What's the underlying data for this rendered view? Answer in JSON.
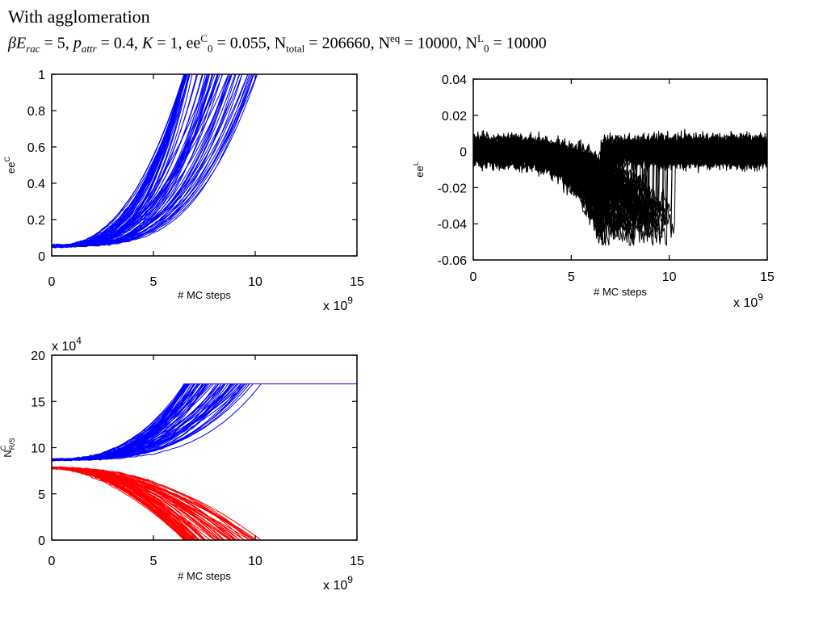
{
  "slide": {
    "title": "With agglomeration",
    "params": {
      "beta": "β",
      "E": "E",
      "E_sub": "rac",
      "E_val": " = 5,  ",
      "p": "p",
      "p_sub": "attr",
      "p_val": " = 0.4, ",
      "K": "K",
      "K_val": " = 1, ee",
      "ee_sup": "C",
      "ee_sub": "0",
      "ee_val": " = 0.055, N",
      "ntot_sub": "total",
      "ntot_val": " = 206660, N",
      "neq_sup": "eq",
      "neq_val": " = 10000, N",
      "nl_sup": "L",
      "nl_sub": "0",
      "nl_val": " = 10000"
    }
  },
  "chart_data": [
    {
      "id": "eeC",
      "type": "line",
      "ylabel": "ee",
      "ylabel_sup": "C",
      "xlabel": "# MC steps",
      "x_multiplier": "x 10",
      "x_multiplier_exp": "9",
      "y_multiplier": "",
      "y_multiplier_exp": "",
      "xlim": [
        0,
        15
      ],
      "ylim": [
        0,
        1
      ],
      "xticks": [
        "0",
        "5",
        "10",
        "15"
      ],
      "yticks": [
        "0",
        "0.2",
        "0.4",
        "0.6",
        "0.8",
        "1"
      ],
      "color": "#0000ff",
      "series_count": 80,
      "initial_value": 0.055,
      "final_value": 1.0,
      "completion_x_range": [
        6.5,
        10.3
      ],
      "sample_series": [
        {
          "x": [
            0,
            2,
            4,
            5,
            6,
            6.5
          ],
          "y": [
            0.055,
            0.12,
            0.33,
            0.5,
            0.78,
            1.0
          ]
        },
        {
          "x": [
            0,
            2,
            4,
            6,
            7,
            8
          ],
          "y": [
            0.055,
            0.08,
            0.2,
            0.45,
            0.68,
            1.0
          ]
        },
        {
          "x": [
            0,
            2,
            4,
            6,
            8,
            9.4
          ],
          "y": [
            0.055,
            0.06,
            0.13,
            0.32,
            0.65,
            1.0
          ]
        },
        {
          "x": [
            0,
            2,
            4,
            6,
            8,
            10.3
          ],
          "y": [
            0.055,
            0.05,
            0.1,
            0.22,
            0.45,
            1.0
          ]
        }
      ]
    },
    {
      "id": "eeL",
      "type": "line",
      "ylabel": "ee",
      "ylabel_sup": "L",
      "xlabel": "# MC steps",
      "x_multiplier": "x 10",
      "x_multiplier_exp": "9",
      "y_multiplier": "",
      "y_multiplier_exp": "",
      "xlim": [
        0,
        15
      ],
      "ylim": [
        -0.06,
        0.04
      ],
      "xticks": [
        "0",
        "5",
        "10",
        "15"
      ],
      "yticks": [
        "-0.06",
        "-0.04",
        "-0.02",
        "0",
        "0.02",
        "0.04"
      ],
      "color": "#000000",
      "series_count": 80,
      "noise_amplitude": 0.007,
      "minimum_range": [
        -0.05,
        -0.035
      ],
      "minimum_x": 7.3,
      "recovery_x_range": [
        6.5,
        10.3
      ]
    },
    {
      "id": "NRS",
      "type": "line",
      "ylabel": "N",
      "ylabel_sup": "C",
      "ylabel_sub": "R/S",
      "xlabel": "# MC steps",
      "x_multiplier": "x 10",
      "x_multiplier_exp": "9",
      "y_multiplier": "x 10",
      "y_multiplier_exp": "4",
      "xlim": [
        0,
        15
      ],
      "ylim": [
        0,
        20
      ],
      "xticks": [
        "0",
        "5",
        "10",
        "15"
      ],
      "yticks": [
        "0",
        "5",
        "10",
        "15",
        "20"
      ],
      "series": [
        {
          "name": "R",
          "color": "#0000ff",
          "initial": 8.7,
          "final": 16.9
        },
        {
          "name": "S",
          "color": "#ff0000",
          "initial": 7.8,
          "final": 0.0
        }
      ],
      "completion_x_range": [
        6.5,
        10.3
      ],
      "series_count": 80
    }
  ]
}
